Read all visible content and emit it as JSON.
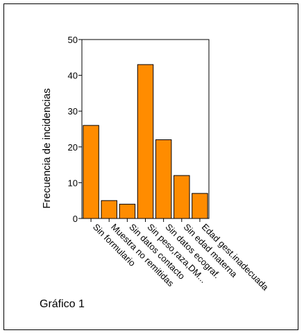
{
  "caption": "Gráfico 1",
  "chart_data": {
    "type": "bar",
    "title": "",
    "xlabel": "",
    "ylabel": "Frecuencia de incidencias",
    "ylim": [
      0,
      50
    ],
    "yticks": [
      0,
      10,
      20,
      30,
      40,
      50
    ],
    "categories": [
      "Sin formulario",
      "Muestra no remitidas",
      "Sin datos contacto",
      "Sin peso,raza,DM...",
      "Sin datos ecograf.",
      "Sin edad materna",
      "Edad gest.inadecuada"
    ],
    "values": [
      26,
      5,
      4,
      43,
      22,
      12,
      7
    ],
    "grid": false,
    "colors": {
      "bar": "#FF8C00",
      "edge": "#000000"
    }
  }
}
